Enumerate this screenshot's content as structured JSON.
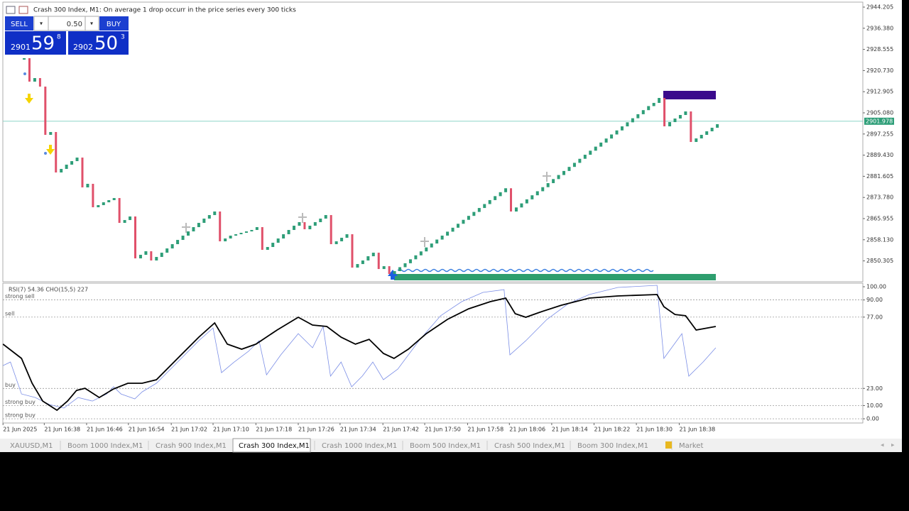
{
  "header": {
    "title": "Crash 300 Index, M1:  On average 1 drop occurr in the price series every 300 ticks"
  },
  "trade_panel": {
    "sell": "SELL",
    "buy": "BUY",
    "volume": "0.50",
    "bid": {
      "big": "2901",
      "main": "59",
      "small": "8"
    },
    "ask": {
      "big": "2902",
      "main": "50",
      "small": "3"
    }
  },
  "price_chart": {
    "type": "candlestick",
    "ylim": [
      2842.85,
      2945.78
    ],
    "xlim": [
      -4.03,
      158.5
    ],
    "yticks": [
      2944.205,
      {
        "value": 2936.38,
        "label": "2936.380"
      },
      2928.555,
      {
        "value": 2920.73,
        "label": "2920.730"
      },
      2912.905,
      {
        "value": 2905.08,
        "label": "2905.080"
      },
      2897.255,
      {
        "value": 2889.43,
        "label": "2889.430"
      },
      2881.605,
      {
        "value": 2873.78,
        "label": "2873.780"
      },
      2865.955,
      {
        "value": 2858.13,
        "label": "2858.130"
      },
      2850.305
    ],
    "current_price": 2901.978,
    "up_color": "#2e9e78",
    "down_color": "#e0506a",
    "closes": [
      2925.3,
      2916.63,
      2917.94,
      2914.79,
      2896.94,
      2897.99,
      2883.02,
      2884.33,
      2885.91,
      2887.22,
      2888.53,
      2877.5,
      2878.82,
      2870.15,
      2870.94,
      2871.99,
      2872.78,
      2873.56,
      2864.37,
      2865.42,
      2866.74,
      2851.24,
      2852.56,
      2853.87,
      2850.46,
      2851.77,
      2853.34,
      2854.92,
      2856.5,
      2858.07,
      2859.65,
      2861.22,
      2862.8,
      2864.37,
      2865.95,
      2867.26,
      2868.58,
      2857.55,
      2858.6,
      2859.65,
      2860.17,
      2860.7,
      2861.22,
      2861.75,
      2862.8,
      2854.39,
      2855.45,
      2857.02,
      2858.6,
      2860.17,
      2861.75,
      2863.32,
      2864.64,
      2862.01,
      2863.32,
      2864.64,
      2865.95,
      2867.26,
      2856.5,
      2857.55,
      2858.86,
      2860.17,
      2847.83,
      2849.14,
      2850.46,
      2852.03,
      2853.34,
      2847.3,
      2848.35,
      2845.47,
      2846.52,
      2847.98,
      2849.44,
      2850.9,
      2852.36,
      2853.82,
      2855.28,
      2856.74,
      2858.2,
      2859.66,
      2861.12,
      2862.58,
      2864.04,
      2865.5,
      2866.96,
      2868.42,
      2869.88,
      2871.34,
      2872.8,
      2874.26,
      2875.72,
      2877.18,
      2868.58,
      2870.08,
      2871.58,
      2873.08,
      2874.58,
      2876.08,
      2877.58,
      2879.08,
      2880.58,
      2882.08,
      2883.58,
      2885.08,
      2886.58,
      2888.08,
      2889.58,
      2891.08,
      2892.58,
      2894.08,
      2895.58,
      2897.08,
      2898.58,
      2900.08,
      2901.58,
      2903.08,
      2904.58,
      2906.08,
      2907.58,
      2908.76,
      2910.59,
      2900.09,
      2901.66,
      2902.98,
      2904.29,
      2905.6,
      2894.31,
      2895.62,
      2896.94,
      2898.25,
      2899.57,
      2900.88
    ]
  },
  "time_axis": {
    "ticks": [
      {
        "value": -4.0,
        "label": "21 Jun 2025"
      },
      {
        "value": 3.8,
        "label": "21 Jun 16:38"
      },
      {
        "value": 11.8,
        "label": "21 Jun 16:46"
      },
      {
        "value": 19.7,
        "label": "21 Jun 16:54"
      },
      {
        "value": 27.8,
        "label": "21 Jun 17:02"
      },
      {
        "value": 35.7,
        "label": "21 Jun 17:10"
      },
      {
        "value": 43.8,
        "label": "21 Jun 17:18"
      },
      {
        "value": 51.8,
        "label": "21 Jun 17:26"
      },
      {
        "value": 59.7,
        "label": "21 Jun 17:34"
      },
      {
        "value": 67.8,
        "label": "21 Jun 17:42"
      },
      {
        "value": 75.7,
        "label": "21 Jun 17:50"
      },
      {
        "value": 83.8,
        "label": "21 Jun 17:58"
      },
      {
        "value": 91.7,
        "label": "21 Jun 18:06"
      },
      {
        "value": 99.7,
        "label": "21 Jun 18:14"
      },
      {
        "value": 107.7,
        "label": "21 Jun 18:22"
      },
      {
        "value": 115.7,
        "label": "21 Jun 18:30"
      },
      {
        "value": 123.8,
        "label": "21 Jun 18:38"
      }
    ]
  },
  "indicator": {
    "type": "line",
    "title": "RSI(7) 54.36 CHO(15,5) 227",
    "ylim": [
      -3.2,
      102.7
    ],
    "yticks": [
      {
        "value": 100,
        "label": "100.00"
      },
      {
        "value": 90,
        "label": "90.00"
      },
      {
        "value": 77,
        "label": "77.00"
      },
      {
        "value": 23,
        "label": "23.00"
      },
      {
        "value": 10,
        "label": "10.00"
      },
      {
        "value": 0,
        "label": "0.00"
      }
    ],
    "levels": [
      {
        "value": 90,
        "label": "strong sell"
      },
      {
        "value": 77,
        "label": "sell"
      },
      {
        "value": 23,
        "label": "buy"
      },
      {
        "value": 10,
        "label": "strong buy"
      },
      {
        "value": 0,
        "label": "strong buy"
      }
    ],
    "series": [
      {
        "color": "#7b8ee6",
        "x": [
          -4.0,
          -2.6,
          -0.5,
          2.1,
          4.8,
          7.5,
          10.2,
          12.9,
          15.6,
          16.9,
          18.3,
          20.9,
          22.3,
          25.0,
          29.0,
          33.0,
          35.7,
          37.3,
          39.7,
          42.4,
          44.4,
          45.8,
          48.5,
          51.8,
          54.5,
          56.5,
          57.9,
          59.9,
          61.9,
          63.9,
          65.9,
          67.9,
          70.6,
          74.6,
          78.7,
          82.7,
          86.7,
          90.7,
          91.8,
          94.8,
          98.8,
          102.8,
          106.8,
          112.2,
          119.6,
          120.9,
          124.3,
          125.6,
          128.3,
          130.7
        ],
        "values": [
          40.3,
          43.0,
          18.8,
          16.1,
          10.8,
          8.1,
          16.1,
          13.4,
          18.8,
          24.2,
          18.8,
          15.1,
          20.4,
          26.9,
          43.0,
          59.1,
          68.8,
          34.9,
          43.0,
          51.1,
          59.1,
          33.3,
          48.4,
          64.5,
          53.8,
          69.9,
          32.3,
          43.0,
          24.2,
          32.3,
          43.0,
          29.6,
          37.6,
          59.1,
          78.0,
          88.7,
          95.7,
          97.8,
          48.4,
          59.1,
          75.3,
          87.1,
          94.1,
          99.5,
          101.1,
          45.7,
          64.5,
          32.3,
          43.0,
          53.8
        ]
      },
      {
        "color": "#000000",
        "x": [
          -4.0,
          -0.5,
          1.5,
          3.5,
          6.2,
          8.2,
          9.9,
          11.5,
          14.2,
          16.9,
          19.6,
          22.3,
          25.0,
          29.0,
          33.0,
          36.0,
          38.4,
          41.1,
          43.8,
          47.8,
          51.8,
          54.5,
          57.2,
          59.9,
          62.6,
          65.2,
          67.9,
          69.9,
          72.6,
          76.0,
          80.0,
          84.0,
          88.1,
          91.0,
          92.8,
          94.8,
          97.4,
          101.5,
          106.8,
          112.2,
          119.6,
          120.9,
          123.0,
          125.0,
          127.0,
          130.7
        ],
        "values": [
          56.5,
          45.7,
          26.9,
          13.4,
          6.5,
          13.4,
          21.5,
          23.1,
          16.1,
          22.6,
          26.9,
          26.9,
          29.6,
          45.7,
          61.8,
          72.6,
          56.5,
          52.7,
          56.5,
          67.2,
          76.9,
          71.0,
          69.9,
          61.8,
          56.5,
          60.2,
          49.5,
          45.7,
          52.7,
          64.5,
          75.3,
          83.3,
          88.7,
          91.4,
          79.6,
          76.9,
          80.6,
          86.0,
          91.4,
          93.0,
          94.1,
          84.9,
          79.0,
          78.0,
          67.2,
          69.9
        ]
      }
    ]
  },
  "tabs": [
    "XAUUSD,M1",
    "Boom 1000 Index,M1",
    "Crash 900 Index,M1",
    "Crash 300 Index,M1",
    "Crash 1000 Index,M1",
    "Boom 500 Index,M1",
    "Crash 500 Index,M1",
    "Boom 300 Index,M1",
    "Market"
  ],
  "active_tab": 3
}
